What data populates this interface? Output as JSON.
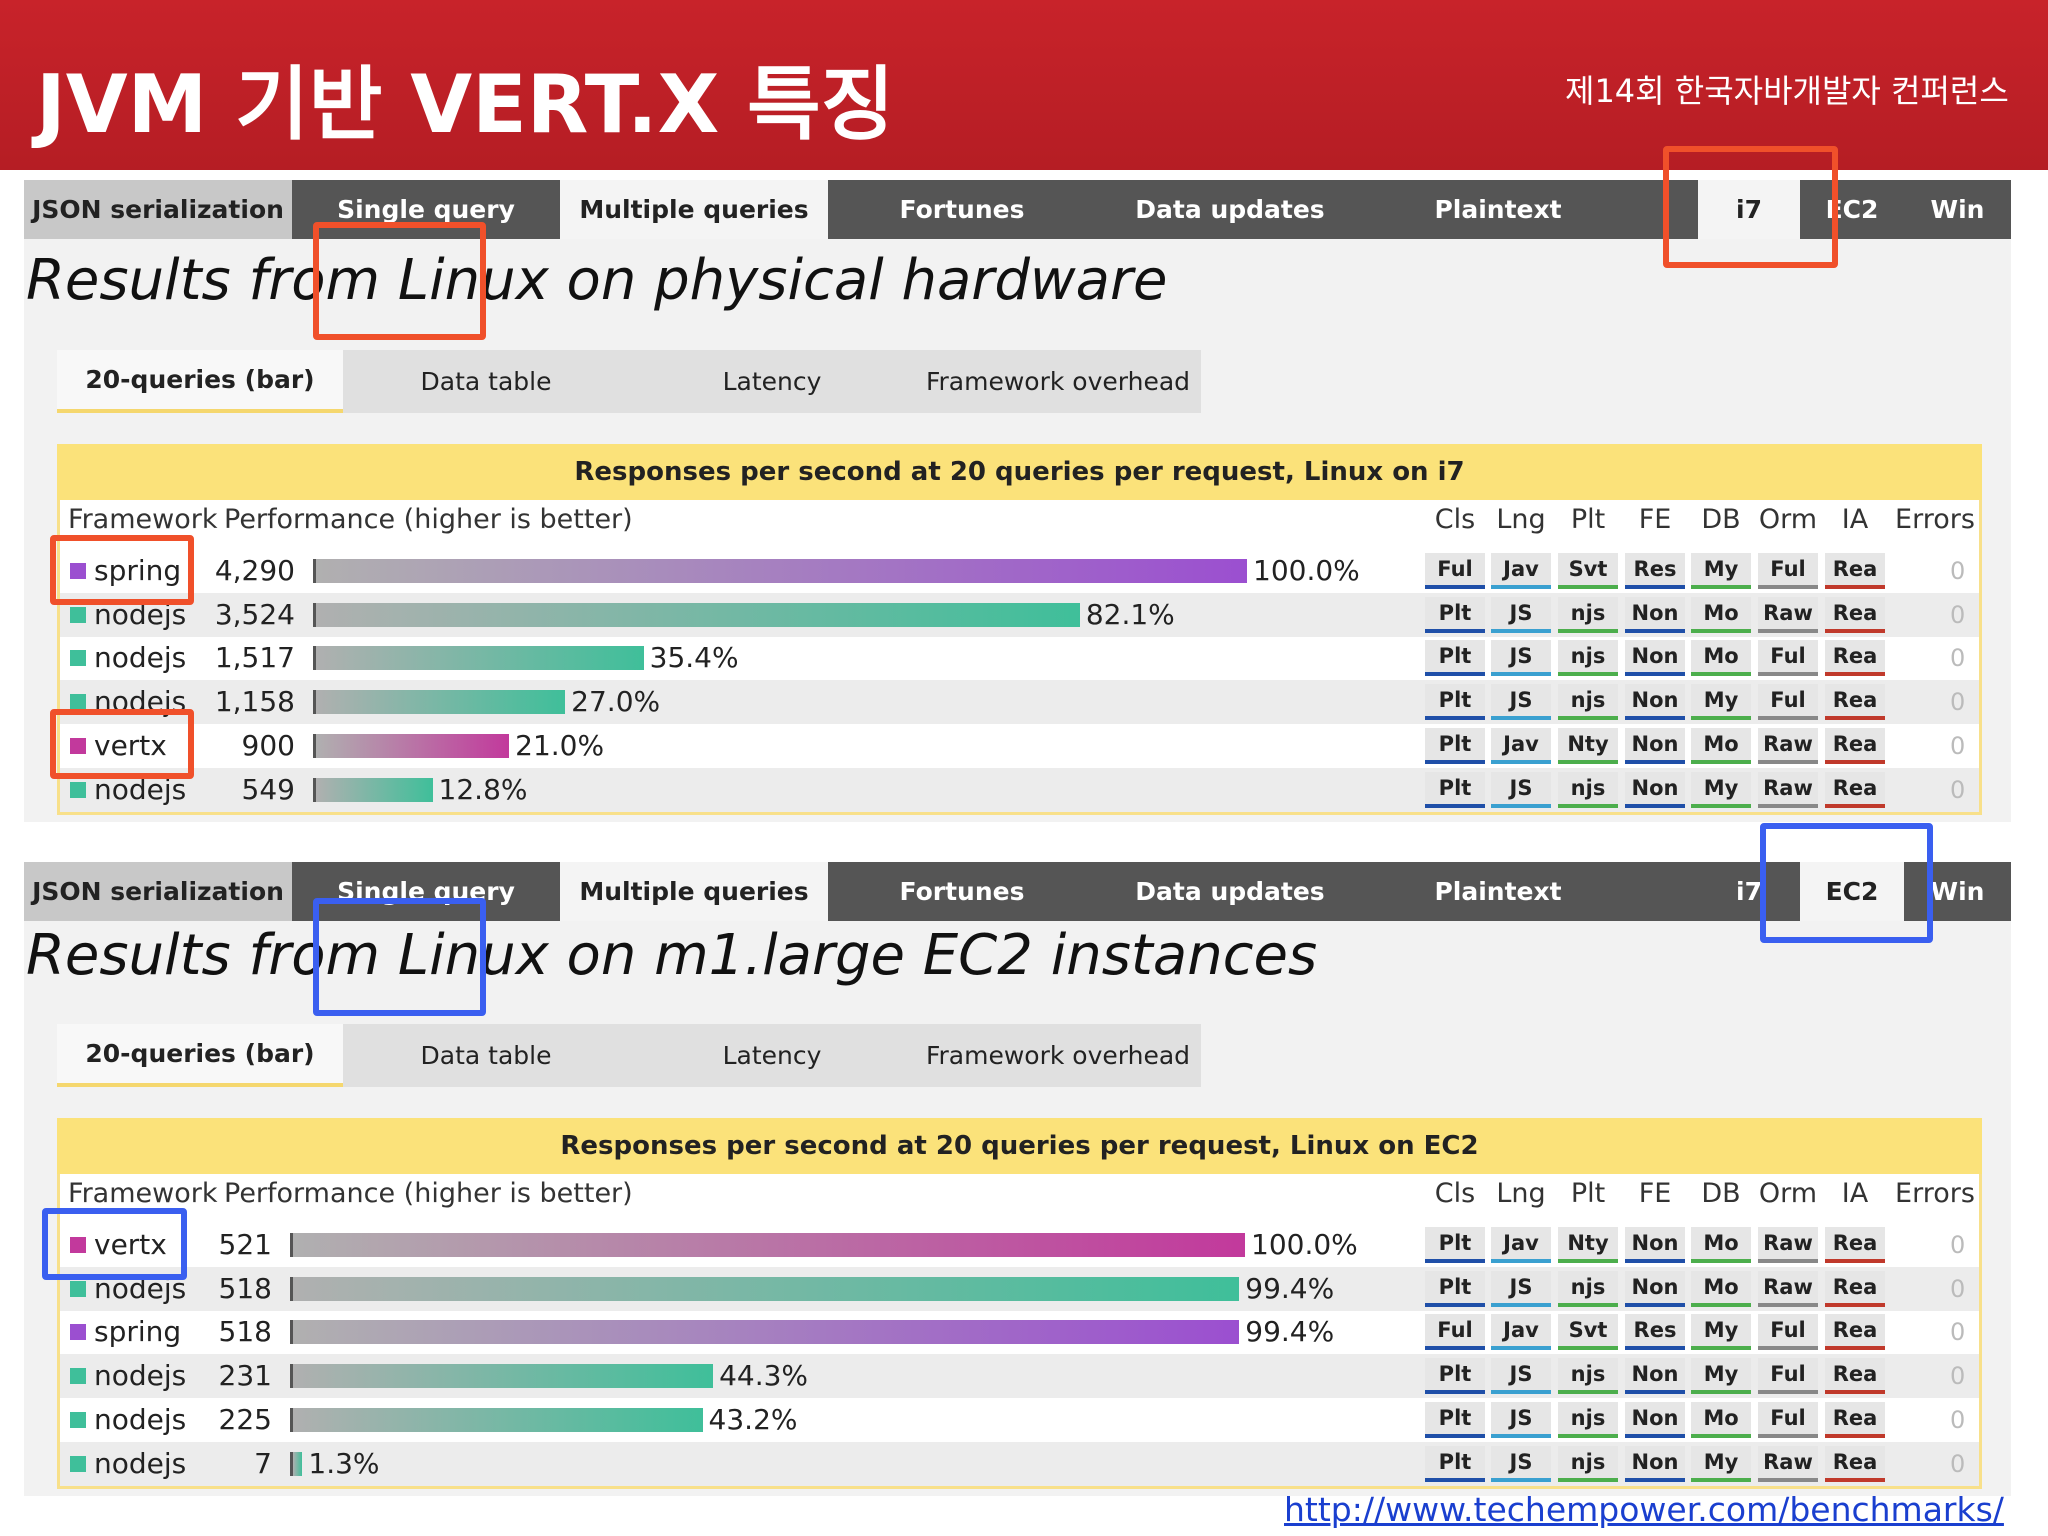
{
  "header": {
    "title": "JVM 기반 VERT.X 특징",
    "conference": "제14회 한국자바개발자 컨퍼런스"
  },
  "panels": [
    {
      "tabs": [
        {
          "label": "JSON serialization"
        },
        {
          "label": "Single query"
        },
        {
          "label": "Multiple queries",
          "active": true
        },
        {
          "label": "Fortunes"
        },
        {
          "label": "Data updates"
        },
        {
          "label": "Plaintext"
        }
      ],
      "hardware_tabs": [
        {
          "label": "i7",
          "active": true
        },
        {
          "label": "EC2"
        },
        {
          "label": "Win"
        }
      ],
      "title": "Results from Linux on physical hardware",
      "subtabs": [
        {
          "label": "20-queries (bar)",
          "active": true
        },
        {
          "label": "Data table"
        },
        {
          "label": "Latency"
        },
        {
          "label": "Framework overhead"
        }
      ],
      "caption": "Responses per second at 20 queries per request, Linux on i7",
      "columns": [
        "Framework",
        "Performance (higher is better)",
        "Cls",
        "Lng",
        "Plt",
        "FE",
        "DB",
        "Orm",
        "IA",
        "Errors"
      ],
      "rows": [
        {
          "framework": "spring",
          "color": "#9b4fd0",
          "responses": "4,290",
          "percent": 100.0,
          "percent_label": "100.0%",
          "cells": [
            "Ful",
            "Jav",
            "Svt",
            "Res",
            "My",
            "Ful",
            "Rea"
          ],
          "errors": "0"
        },
        {
          "framework": "nodejs",
          "color": "#3fbf9a",
          "responses": "3,524",
          "percent": 82.1,
          "percent_label": "82.1%",
          "cells": [
            "Plt",
            "JS",
            "njs",
            "Non",
            "Mo",
            "Raw",
            "Rea"
          ],
          "errors": "0"
        },
        {
          "framework": "nodejs",
          "color": "#3fbf9a",
          "responses": "1,517",
          "percent": 35.4,
          "percent_label": "35.4%",
          "cells": [
            "Plt",
            "JS",
            "njs",
            "Non",
            "Mo",
            "Ful",
            "Rea"
          ],
          "errors": "0"
        },
        {
          "framework": "nodejs",
          "color": "#3fbf9a",
          "responses": "1,158",
          "percent": 27.0,
          "percent_label": "27.0%",
          "cells": [
            "Plt",
            "JS",
            "njs",
            "Non",
            "My",
            "Ful",
            "Rea"
          ],
          "errors": "0"
        },
        {
          "framework": "vertx",
          "color": "#c2399c",
          "responses": "900",
          "percent": 21.0,
          "percent_label": "21.0%",
          "cells": [
            "Plt",
            "Jav",
            "Nty",
            "Non",
            "Mo",
            "Raw",
            "Rea"
          ],
          "errors": "0"
        },
        {
          "framework": "nodejs",
          "color": "#3fbf9a",
          "responses": "549",
          "percent": 12.8,
          "percent_label": "12.8%",
          "cells": [
            "Plt",
            "JS",
            "njs",
            "Non",
            "My",
            "Raw",
            "Rea"
          ],
          "errors": "0"
        }
      ]
    },
    {
      "tabs": [
        {
          "label": "JSON serialization"
        },
        {
          "label": "Single query"
        },
        {
          "label": "Multiple queries",
          "active": true
        },
        {
          "label": "Fortunes"
        },
        {
          "label": "Data updates"
        },
        {
          "label": "Plaintext"
        }
      ],
      "hardware_tabs": [
        {
          "label": "i7"
        },
        {
          "label": "EC2",
          "active": true
        },
        {
          "label": "Win"
        }
      ],
      "title": "Results from Linux on m1.large EC2 instances",
      "subtabs": [
        {
          "label": "20-queries (bar)",
          "active": true
        },
        {
          "label": "Data table"
        },
        {
          "label": "Latency"
        },
        {
          "label": "Framework overhead"
        }
      ],
      "caption": "Responses per second at 20 queries per request, Linux on EC2",
      "columns": [
        "Framework",
        "Performance (higher is better)",
        "Cls",
        "Lng",
        "Plt",
        "FE",
        "DB",
        "Orm",
        "IA",
        "Errors"
      ],
      "rows": [
        {
          "framework": "vertx",
          "color": "#c2399c",
          "responses": "521",
          "percent": 100.0,
          "percent_label": "100.0%",
          "cells": [
            "Plt",
            "Jav",
            "Nty",
            "Non",
            "Mo",
            "Raw",
            "Rea"
          ],
          "errors": "0"
        },
        {
          "framework": "nodejs",
          "color": "#3fbf9a",
          "responses": "518",
          "percent": 99.4,
          "percent_label": "99.4%",
          "cells": [
            "Plt",
            "JS",
            "njs",
            "Non",
            "Mo",
            "Raw",
            "Rea"
          ],
          "errors": "0"
        },
        {
          "framework": "spring",
          "color": "#9b4fd0",
          "responses": "518",
          "percent": 99.4,
          "percent_label": "99.4%",
          "cells": [
            "Ful",
            "Jav",
            "Svt",
            "Res",
            "My",
            "Ful",
            "Rea"
          ],
          "errors": "0"
        },
        {
          "framework": "nodejs",
          "color": "#3fbf9a",
          "responses": "231",
          "percent": 44.3,
          "percent_label": "44.3%",
          "cells": [
            "Plt",
            "JS",
            "njs",
            "Non",
            "My",
            "Ful",
            "Rea"
          ],
          "errors": "0"
        },
        {
          "framework": "nodejs",
          "color": "#3fbf9a",
          "responses": "225",
          "percent": 43.2,
          "percent_label": "43.2%",
          "cells": [
            "Plt",
            "JS",
            "njs",
            "Non",
            "Mo",
            "Ful",
            "Rea"
          ],
          "errors": "0"
        },
        {
          "framework": "nodejs",
          "color": "#3fbf9a",
          "responses": "7",
          "percent": 1.3,
          "percent_label": "1.3%",
          "cells": [
            "Plt",
            "JS",
            "njs",
            "Non",
            "My",
            "Raw",
            "Rea"
          ],
          "errors": "0"
        }
      ]
    }
  ],
  "footer": {
    "url": "http://www.techempower.com/benchmarks/"
  }
}
